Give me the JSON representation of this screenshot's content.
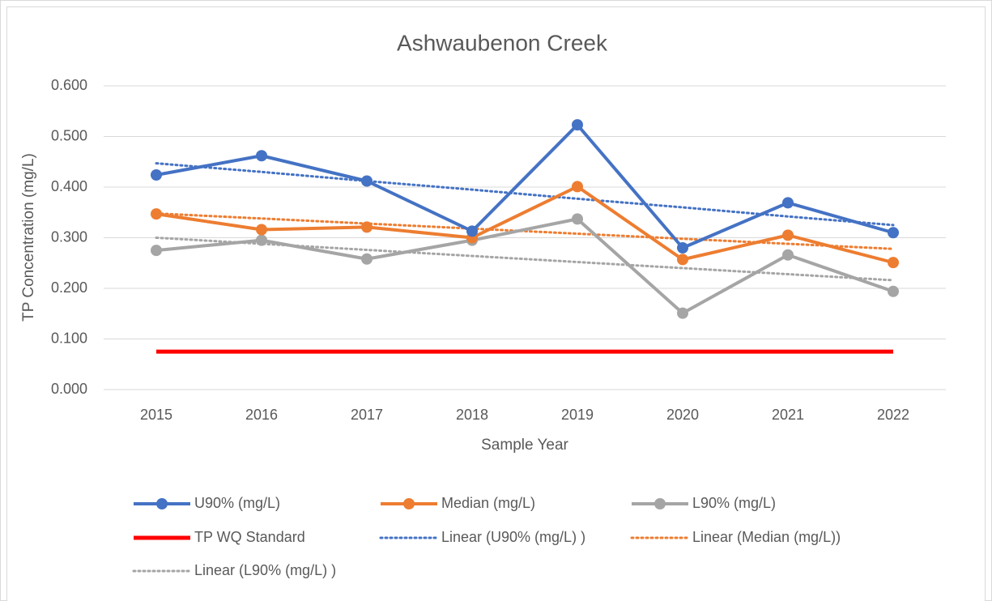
{
  "chart_data": {
    "type": "line",
    "title": "Ashwaubenon Creek",
    "x_label": "Sample Year",
    "y_label": "TP Concentration (mg/L)",
    "categories": [
      "2015",
      "2016",
      "2017",
      "2018",
      "2019",
      "2020",
      "2021",
      "2022"
    ],
    "ylim": [
      0,
      0.6
    ],
    "yticks": [
      {
        "value": 0,
        "label": "0.000"
      },
      {
        "value": 0.1,
        "label": "0.100"
      },
      {
        "value": 0.2,
        "label": "0.200"
      },
      {
        "value": 0.3,
        "label": "0.300"
      },
      {
        "value": 0.4,
        "label": "0.400"
      },
      {
        "value": 0.5,
        "label": "0.500"
      },
      {
        "value": 0.6,
        "label": "0.600"
      }
    ],
    "grid": true,
    "series": [
      {
        "name": "U90% (mg/L)",
        "color": "#4472c4",
        "marker": true,
        "values": [
          0.424,
          0.462,
          0.412,
          0.313,
          0.523,
          0.28,
          0.369,
          0.31
        ]
      },
      {
        "name": "Median (mg/L)",
        "color": "#ed7d31",
        "marker": true,
        "values": [
          0.347,
          0.316,
          0.321,
          0.3,
          0.401,
          0.257,
          0.305,
          0.251
        ]
      },
      {
        "name": "L90% (mg/L)",
        "color": "#a5a5a5",
        "marker": true,
        "values": [
          0.275,
          0.295,
          0.258,
          0.295,
          0.337,
          0.151,
          0.266,
          0.194
        ]
      },
      {
        "name": "TP WQ Standard",
        "color": "#ff0000",
        "marker": false,
        "values": [
          0.075,
          0.075,
          0.075,
          0.075,
          0.075,
          0.075,
          0.075,
          0.075
        ]
      },
      {
        "name": "Linear (U90% (mg/L) )",
        "color": "#4472c4",
        "dash": "dotted",
        "values": [
          0.447,
          0.43,
          0.412,
          0.395,
          0.377,
          0.36,
          0.342,
          0.325
        ]
      },
      {
        "name": "Linear (Median (mg/L))",
        "color": "#ed7d31",
        "dash": "dotted",
        "values": [
          0.348,
          0.338,
          0.328,
          0.318,
          0.308,
          0.298,
          0.288,
          0.278
        ]
      },
      {
        "name": "Linear (L90% (mg/L) )",
        "color": "#a5a5a5",
        "dash": "dotted",
        "values": [
          0.3,
          0.288,
          0.276,
          0.264,
          0.252,
          0.24,
          0.228,
          0.216
        ]
      }
    ]
  }
}
